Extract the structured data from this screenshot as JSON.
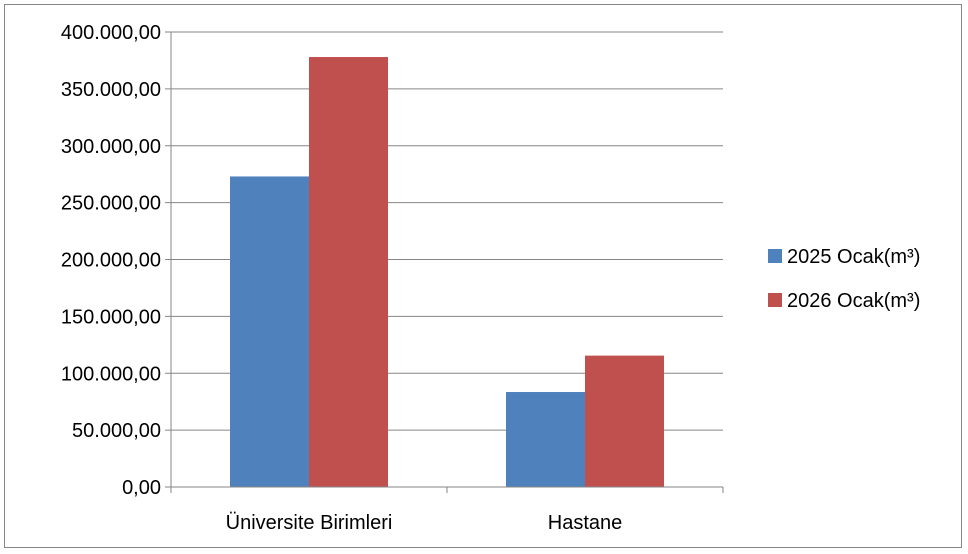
{
  "chart_data": {
    "type": "bar",
    "categories": [
      "Üniversite Birimleri",
      "Hastane"
    ],
    "series": [
      {
        "name": "2025 Ocak(m³)",
        "color": "#4F81BD",
        "values": [
          273000,
          83500
        ]
      },
      {
        "name": "2026 Ocak(m³)",
        "color": "#C0504D",
        "values": [
          378000,
          115500
        ]
      }
    ],
    "y_ticks": [
      "0,00",
      "50.000,00",
      "100.000,00",
      "150.000,00",
      "200.000,00",
      "250.000,00",
      "300.000,00",
      "350.000,00",
      "400.000,00"
    ],
    "ylim": [
      0,
      400000
    ],
    "grid": true,
    "legend": "right"
  }
}
